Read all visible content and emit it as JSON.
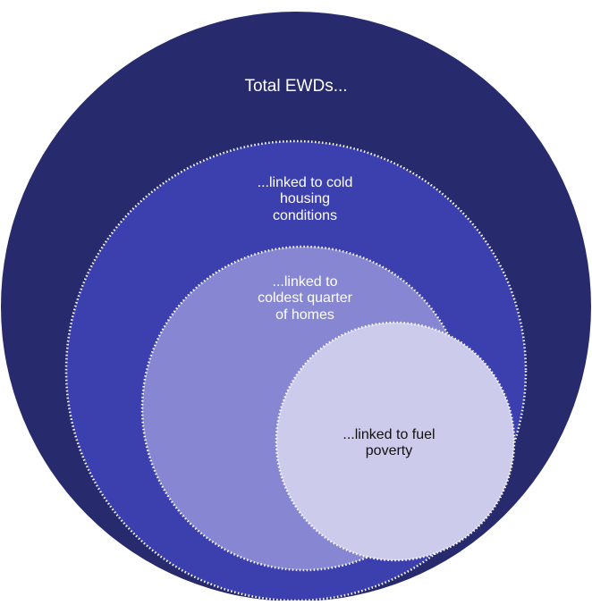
{
  "diagram": {
    "type": "nested-circles",
    "colors": {
      "outer": "#282a6e",
      "cold_housing": "#3c40ae",
      "coldest_quarter": "#8786d2",
      "fuel_poverty": "#cccbec",
      "border": "#ffffff"
    },
    "circles": [
      {
        "label": "Total EWDs..."
      },
      {
        "label": "...linked to cold\nhousing\nconditions"
      },
      {
        "label": "...linked to\ncoldest quarter\nof homes"
      },
      {
        "label": "...linked to fuel\npoverty"
      }
    ]
  }
}
